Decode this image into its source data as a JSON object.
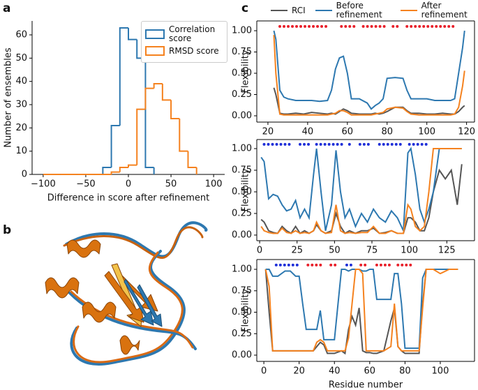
{
  "panel_labels": [
    "a",
    "b",
    "c"
  ],
  "chart_data": [
    {
      "type": "histogram",
      "xlabel": "Difference in score after refinement",
      "ylabel": "Number of ensembles",
      "bins": [
        -100,
        -90,
        -80,
        -70,
        -60,
        -50,
        -40,
        -30,
        -20,
        -10,
        0,
        10,
        20,
        30,
        40,
        50,
        60,
        70,
        80,
        90,
        100
      ],
      "series": [
        {
          "name": "Correlation score",
          "color": "#2d78b0",
          "values": [
            null,
            null,
            null,
            null,
            null,
            null,
            null,
            3,
            21,
            63,
            58,
            50,
            3,
            null,
            null,
            null,
            null,
            null,
            null,
            null
          ]
        },
        {
          "name": "RMSD score",
          "color": "#f5821f",
          "values": [
            0,
            0,
            0,
            0,
            0,
            0,
            0,
            0,
            1,
            3,
            4,
            28,
            37,
            39,
            32,
            24,
            10,
            3,
            null,
            null
          ]
        }
      ],
      "xlim": [
        -113,
        113
      ],
      "ylim": [
        0,
        66
      ],
      "xticks": [
        {
          "value": -100,
          "label": "−100"
        },
        {
          "value": -50,
          "label": "−50"
        },
        0,
        50,
        100
      ],
      "yticks": [
        0,
        10,
        20,
        30,
        40,
        50,
        60
      ],
      "legend": "upper right"
    },
    {
      "type": "line",
      "ylabel": "Flexibility",
      "x": [
        23,
        24,
        26,
        28,
        30,
        34,
        38,
        42,
        46,
        50,
        52,
        54,
        56,
        58,
        60,
        62,
        66,
        70,
        72,
        74,
        76,
        78,
        80,
        84,
        88,
        90,
        92,
        96,
        100,
        104,
        108,
        112,
        114,
        116,
        118,
        119
      ],
      "series": [
        {
          "name": "RCI",
          "color": "#555555",
          "values": [
            0.33,
            0.25,
            0.03,
            0.02,
            0.02,
            0.03,
            0.02,
            0.04,
            0.03,
            0.02,
            0.03,
            0.02,
            0.05,
            0.08,
            0.06,
            0.03,
            0.02,
            0.02,
            0.02,
            0.03,
            0.02,
            0.03,
            0.05,
            0.1,
            0.1,
            0.06,
            0.03,
            0.03,
            0.02,
            0.02,
            0.03,
            0.02,
            0.02,
            0.05,
            0.1,
            0.12
          ]
        },
        {
          "name": "Before refinement",
          "color": "#2d78b0",
          "values": [
            1.0,
            0.9,
            0.3,
            0.22,
            0.2,
            0.18,
            0.18,
            0.18,
            0.17,
            0.18,
            0.3,
            0.55,
            0.68,
            0.7,
            0.5,
            0.2,
            0.2,
            0.15,
            0.08,
            0.12,
            0.15,
            0.2,
            0.44,
            0.45,
            0.44,
            0.3,
            0.2,
            0.2,
            0.2,
            0.18,
            0.18,
            0.18,
            0.2,
            0.5,
            0.8,
            1.0
          ]
        },
        {
          "name": "After refinement",
          "color": "#f5821f",
          "values": [
            0.95,
            0.5,
            0.02,
            0.01,
            0.01,
            0.01,
            0.01,
            0.01,
            0.01,
            0.01,
            0.02,
            0.03,
            0.06,
            0.06,
            0.04,
            0.01,
            0.01,
            0.01,
            0.01,
            0.02,
            0.03,
            0.04,
            0.08,
            0.1,
            0.09,
            0.05,
            0.02,
            0.01,
            0.01,
            0.01,
            0.01,
            0.01,
            0.02,
            0.1,
            0.35,
            0.53
          ]
        }
      ],
      "segments": [
        {
          "color": "#e8202a",
          "x": [
            26,
            50
          ],
          "y": 1.05
        },
        {
          "color": "#e8202a",
          "x": [
            57,
            65
          ],
          "y": 1.05
        },
        {
          "color": "#e8202a",
          "x": [
            68,
            80
          ],
          "y": 1.05
        },
        {
          "color": "#e8202a",
          "x": [
            83,
            86
          ],
          "y": 1.05
        },
        {
          "color": "#e8202a",
          "x": [
            90,
            115
          ],
          "y": 1.05
        }
      ],
      "xlim": [
        14.4,
        124
      ],
      "ylim": [
        -0.074,
        1.115
      ],
      "xticks": [
        20,
        40,
        60,
        80,
        100,
        120
      ],
      "yticks": [
        {
          "value": 0,
          "label": "0.00"
        },
        {
          "value": 0.25,
          "label": "0.25"
        },
        {
          "value": 0.5,
          "label": "0.50"
        },
        {
          "value": 0.75,
          "label": "0.75"
        },
        {
          "value": 1,
          "label": "1.00"
        }
      ],
      "legend": "above"
    },
    {
      "type": "line",
      "ylabel": "Flexibility",
      "x": [
        1,
        3,
        6,
        9,
        12,
        15,
        18,
        21,
        24,
        27,
        30,
        33,
        36,
        38,
        41,
        44,
        48,
        51,
        54,
        57,
        60,
        64,
        68,
        72,
        76,
        80,
        84,
        88,
        92,
        96,
        99,
        101,
        104,
        107,
        110,
        113,
        116,
        120,
        124,
        128,
        132,
        135
      ],
      "series": [
        {
          "color": "#555555",
          "values": [
            0.18,
            0.15,
            0.05,
            0.03,
            0.02,
            0.1,
            0.05,
            0.02,
            0.1,
            0.02,
            0.05,
            0.02,
            0.05,
            0.12,
            0.05,
            0.02,
            0.05,
            0.25,
            0.1,
            0.02,
            0.05,
            0.02,
            0.05,
            0.05,
            0.08,
            0.02,
            0.03,
            0.05,
            0.02,
            0.02,
            0.2,
            0.2,
            0.15,
            0.05,
            0.05,
            0.2,
            0.5,
            0.75,
            0.65,
            0.75,
            0.35,
            0.82
          ]
        },
        {
          "color": "#2d78b0",
          "values": [
            0.9,
            0.85,
            0.42,
            0.47,
            0.45,
            0.35,
            0.28,
            0.3,
            0.4,
            0.2,
            0.3,
            0.2,
            0.7,
            1.0,
            0.5,
            0.05,
            0.35,
            0.98,
            0.5,
            0.2,
            0.3,
            0.1,
            0.25,
            0.15,
            0.3,
            0.2,
            0.15,
            0.28,
            0.2,
            0.05,
            0.95,
            1.0,
            0.7,
            0.3,
            0.15,
            0.3,
            0.5,
            1.0,
            1.0,
            1.0,
            1.0,
            1.0
          ]
        },
        {
          "color": "#f5821f",
          "values": [
            0.1,
            0.05,
            0.03,
            0.02,
            0.02,
            0.08,
            0.03,
            0.02,
            0.05,
            0.02,
            0.03,
            0.02,
            0.05,
            0.15,
            0.05,
            0.02,
            0.03,
            0.35,
            0.05,
            0.02,
            0.03,
            0.02,
            0.03,
            0.03,
            0.1,
            0.02,
            0.02,
            0.05,
            0.02,
            0.02,
            0.35,
            0.3,
            0.1,
            0.05,
            0.1,
            0.5,
            1.0,
            1.0,
            1.0,
            1.0,
            1.0,
            1.0
          ]
        }
      ],
      "segments": [
        {
          "color": "#1f2fd8",
          "x": [
            3,
            20
          ],
          "y": 1.05
        },
        {
          "color": "#1f2fd8",
          "x": [
            27,
            33
          ],
          "y": 1.05
        },
        {
          "color": "#1f2fd8",
          "x": [
            38,
            56
          ],
          "y": 1.05
        },
        {
          "color": "#1f2fd8",
          "x": [
            60,
            62
          ],
          "y": 1.05
        },
        {
          "color": "#1f2fd8",
          "x": [
            67,
            73
          ],
          "y": 1.05
        },
        {
          "color": "#1f2fd8",
          "x": [
            80,
            96
          ],
          "y": 1.05
        },
        {
          "color": "#1f2fd8",
          "x": [
            100,
            112
          ],
          "y": 1.05
        }
      ],
      "xlim": [
        -1.9,
        143.5
      ],
      "ylim": [
        -0.065,
        1.105
      ],
      "xticks": [
        0,
        25,
        50,
        75,
        100,
        125
      ],
      "yticks": [
        {
          "value": 0,
          "label": "0.00"
        },
        {
          "value": 0.25,
          "label": "0.25"
        },
        {
          "value": 0.5,
          "label": "0.50"
        },
        {
          "value": 0.75,
          "label": "0.75"
        },
        {
          "value": 1,
          "label": "1.00"
        }
      ]
    },
    {
      "type": "line",
      "ylabel": "Flexibility",
      "xlabel": "Residue number",
      "x": [
        1,
        3,
        5,
        8,
        12,
        15,
        18,
        20,
        22,
        24,
        28,
        30,
        32,
        34,
        36,
        40,
        44,
        46,
        48,
        50,
        52,
        54,
        56,
        58,
        60,
        62,
        64,
        68,
        72,
        74,
        76,
        78,
        80,
        84,
        88,
        90,
        92,
        96,
        100,
        105,
        110
      ],
      "series": [
        {
          "color": "#555555",
          "values": [
            1.0,
            0.5,
            0.05,
            0.05,
            0.05,
            0.05,
            0.05,
            0.05,
            0.05,
            0.05,
            0.05,
            0.1,
            0.15,
            0.12,
            0.02,
            0.02,
            0.05,
            0.02,
            0.3,
            0.45,
            0.35,
            0.55,
            0.05,
            0.03,
            0.03,
            0.02,
            0.02,
            0.05,
            0.4,
            0.55,
            0.1,
            0.05,
            0.02,
            0.02,
            0.02,
            0.6,
            1.0,
            1.0,
            1.0,
            1.0,
            1.0
          ]
        },
        {
          "color": "#2d78b0",
          "values": [
            1.0,
            1.0,
            0.92,
            0.92,
            0.98,
            0.98,
            0.92,
            0.92,
            0.6,
            0.3,
            0.3,
            0.3,
            0.52,
            0.18,
            0.18,
            0.18,
            1.0,
            1.0,
            0.98,
            1.0,
            1.0,
            1.0,
            0.98,
            0.98,
            1.0,
            1.0,
            0.65,
            0.65,
            0.65,
            0.95,
            0.95,
            0.6,
            0.08,
            0.08,
            0.08,
            0.9,
            1.0,
            1.0,
            1.0,
            1.0,
            1.0
          ]
        },
        {
          "color": "#f5821f",
          "values": [
            1.0,
            0.8,
            0.05,
            0.05,
            0.05,
            0.05,
            0.05,
            0.05,
            0.05,
            0.05,
            0.05,
            0.15,
            0.18,
            0.15,
            0.05,
            0.05,
            0.05,
            0.05,
            0.2,
            0.6,
            1.0,
            1.0,
            0.95,
            0.05,
            0.05,
            0.05,
            0.05,
            0.05,
            0.1,
            0.6,
            0.1,
            0.05,
            0.05,
            0.05,
            0.05,
            0.55,
            1.0,
            1.0,
            0.95,
            1.0,
            1.0
          ]
        }
      ],
      "segments": [
        {
          "color": "#1f2fd8",
          "x": [
            7,
            19
          ],
          "y": 1.05
        },
        {
          "color": "#e8202a",
          "x": [
            25,
            33
          ],
          "y": 1.05
        },
        {
          "color": "#e8202a",
          "x": [
            38,
            42
          ],
          "y": 1.05
        },
        {
          "color": "#1f2fd8",
          "x": [
            47,
            50
          ],
          "y": 1.05
        },
        {
          "color": "#e8202a",
          "x": [
            55,
            58
          ],
          "y": 1.05
        },
        {
          "color": "#e8202a",
          "x": [
            64,
            72
          ],
          "y": 1.05
        },
        {
          "color": "#e8202a",
          "x": [
            76,
            84
          ],
          "y": 1.05
        }
      ],
      "xlim": [
        -4,
        119.4
      ],
      "ylim": [
        -0.073,
        1.114
      ],
      "xticks": [
        0,
        20,
        40,
        60,
        80,
        100
      ],
      "yticks": [
        {
          "value": 0,
          "label": "0.00"
        },
        {
          "value": 0.25,
          "label": "0.25"
        },
        {
          "value": 0.5,
          "label": "0.50"
        },
        {
          "value": 0.75,
          "label": "0.75"
        },
        {
          "value": 1,
          "label": "1.00"
        }
      ]
    }
  ]
}
